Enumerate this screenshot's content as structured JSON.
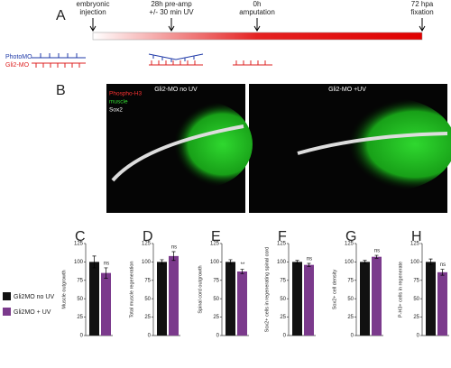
{
  "panel_a": {
    "letter": "A",
    "events": [
      {
        "lines": [
          "embryonic",
          "injection"
        ]
      },
      {
        "lines": [
          "28h pre-amp",
          "+/- 30 min UV"
        ]
      },
      {
        "lines": [
          "0h",
          "amputation"
        ]
      },
      {
        "lines": [
          "72 hpa",
          "fixation"
        ]
      }
    ],
    "morpholinos": [
      "PhotoMO",
      "Gli2-MO"
    ]
  },
  "panel_b": {
    "letter": "B",
    "images": [
      "Gli2-MO  no UV",
      "Gli2-MO  +UV"
    ],
    "stains": [
      "Phospho-H3",
      "muscle",
      "Sox2"
    ]
  },
  "legend": [
    {
      "name": "Gli2MO no UV",
      "color": "#111111"
    },
    {
      "name": "Gli2MO + UV",
      "color": "#7b3a8c"
    }
  ],
  "chart_data": [
    {
      "type": "bar",
      "letter": "C",
      "ylabel": "Muscle outgrowth",
      "values": [
        100,
        85
      ],
      "errors": [
        8,
        7
      ],
      "annotation": "ns",
      "ylim": [
        0,
        125
      ],
      "yticks": [
        0,
        25,
        50,
        75,
        100,
        125
      ]
    },
    {
      "type": "bar",
      "letter": "D",
      "ylabel": "Total muscle regeneration",
      "values": [
        100,
        108
      ],
      "errors": [
        3,
        6
      ],
      "annotation": "ns",
      "ylim": [
        0,
        125
      ],
      "yticks": [
        0,
        25,
        50,
        75,
        100,
        125
      ]
    },
    {
      "type": "bar",
      "letter": "E",
      "ylabel": "Spinal cord outgrowth",
      "values": [
        100,
        87
      ],
      "errors": [
        3,
        3
      ],
      "annotation": "**",
      "ylim": [
        0,
        125
      ],
      "yticks": [
        0,
        25,
        50,
        75,
        100,
        125
      ]
    },
    {
      "type": "bar",
      "letter": "F",
      "ylabel": "Sox2+ cells in regenerating spinal cord",
      "values": [
        100,
        96
      ],
      "errors": [
        2,
        2
      ],
      "annotation": "ns",
      "ylim": [
        0,
        125
      ],
      "yticks": [
        0,
        25,
        50,
        75,
        100,
        125
      ]
    },
    {
      "type": "bar",
      "letter": "G",
      "ylabel": "Sox2+ cell density",
      "values": [
        100,
        107
      ],
      "errors": [
        2,
        2
      ],
      "annotation": "ns",
      "ylim": [
        0,
        125
      ],
      "yticks": [
        0,
        25,
        50,
        75,
        100,
        125
      ]
    },
    {
      "type": "bar",
      "letter": "H",
      "ylabel": "P-H3+ cells in regenerate",
      "values": [
        100,
        86
      ],
      "errors": [
        4,
        4
      ],
      "annotation": "ns",
      "ylim": [
        0,
        125
      ],
      "yticks": [
        0,
        25,
        50,
        75,
        100,
        125
      ]
    }
  ]
}
